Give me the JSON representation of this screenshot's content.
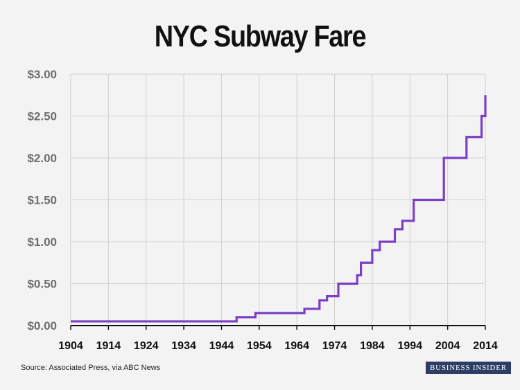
{
  "chart_data": {
    "type": "line",
    "title": "NYC Subway Fare",
    "xlabel": "",
    "ylabel": "",
    "xlim": [
      1904,
      2014
    ],
    "ylim": [
      0,
      3.0
    ],
    "x_ticks": [
      1904,
      1914,
      1924,
      1934,
      1944,
      1954,
      1964,
      1974,
      1984,
      1994,
      2004,
      2014
    ],
    "y_ticks": [
      {
        "value": 0,
        "label": "$0.00"
      },
      {
        "value": 0.5,
        "label": "$0.50"
      },
      {
        "value": 1.0,
        "label": "$1.00"
      },
      {
        "value": 1.5,
        "label": "$1.50"
      },
      {
        "value": 2.0,
        "label": "$2.00"
      },
      {
        "value": 2.5,
        "label": "$2.50"
      },
      {
        "value": 3.0,
        "label": "$3.00"
      }
    ],
    "grid": true,
    "series": [
      {
        "name": "Fare",
        "color": "#7b3fc6",
        "step": "post",
        "points": [
          [
            1904,
            0.05
          ],
          [
            1948,
            0.1
          ],
          [
            1953,
            0.15
          ],
          [
            1966,
            0.2
          ],
          [
            1970,
            0.3
          ],
          [
            1972,
            0.35
          ],
          [
            1975,
            0.5
          ],
          [
            1980,
            0.6
          ],
          [
            1981,
            0.75
          ],
          [
            1984,
            0.9
          ],
          [
            1986,
            1.0
          ],
          [
            1990,
            1.15
          ],
          [
            1992,
            1.25
          ],
          [
            1995,
            1.5
          ],
          [
            2003,
            2.0
          ],
          [
            2009,
            2.25
          ],
          [
            2013,
            2.5
          ],
          [
            2014,
            2.75
          ]
        ]
      }
    ]
  },
  "footer": {
    "source": "Source: Associated Press, via ABC News",
    "brand": "BUSINESS INSIDER"
  }
}
